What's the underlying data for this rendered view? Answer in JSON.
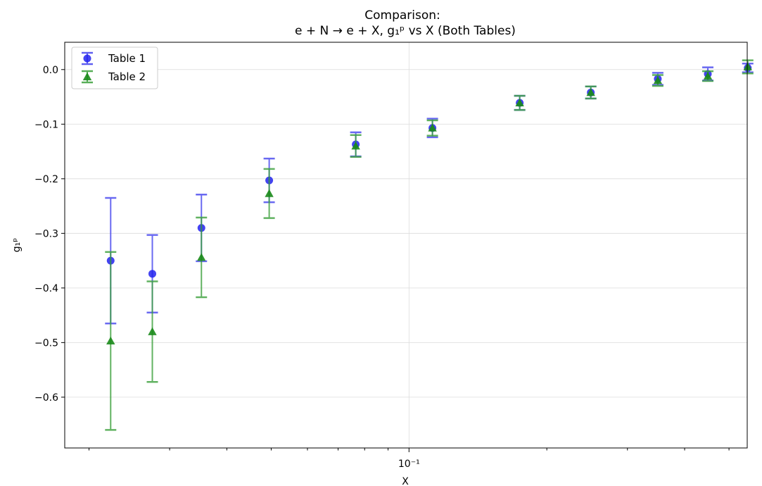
{
  "chart_data": {
    "type": "scatter",
    "title": "Comparison:",
    "subtitle": "e + N → e + X, g₁ᵖ vs X (Both Tables)",
    "xlabel": "X",
    "ylabel": "g₁ᵖ",
    "xscale": "log",
    "xlim": [
      0.0177,
      0.548
    ],
    "ylim": [
      -0.693,
      0.05
    ],
    "grid": true,
    "legend_position": "top-left",
    "x_tick_label": "10⁻¹",
    "y_ticks": [
      0.0,
      -0.1,
      -0.2,
      -0.3,
      -0.4,
      -0.5,
      -0.6
    ],
    "y_tick_labels": [
      "0.0",
      "−0.1",
      "−0.2",
      "−0.3",
      "−0.4",
      "−0.5",
      "−0.6"
    ],
    "series": [
      {
        "name": "Table 1",
        "marker": "circle",
        "color": "#2222ee",
        "errorbar_color": "#4444ee",
        "x": [
          0.0223,
          0.0275,
          0.0352,
          0.0495,
          0.0765,
          0.1125,
          0.1745,
          0.2495,
          0.3495,
          0.4495,
          0.5495
        ],
        "y": [
          -0.35,
          -0.374,
          -0.29,
          -0.203,
          -0.137,
          -0.107,
          -0.061,
          -0.042,
          -0.017,
          -0.008,
          0.003
        ],
        "yerr": [
          0.115,
          0.071,
          0.061,
          0.04,
          0.022,
          0.017,
          0.013,
          0.011,
          0.011,
          0.012,
          0.008
        ]
      },
      {
        "name": "Table 2",
        "marker": "triangle",
        "color": "#1a8a1a",
        "errorbar_color": "#3aa03a",
        "x": [
          0.0223,
          0.0275,
          0.0352,
          0.0495,
          0.0765,
          0.1125,
          0.1745,
          0.2495,
          0.3495,
          0.4495,
          0.5495
        ],
        "y": [
          -0.497,
          -0.48,
          -0.344,
          -0.227,
          -0.14,
          -0.107,
          -0.061,
          -0.042,
          -0.02,
          -0.012,
          0.005
        ],
        "yerr": [
          0.163,
          0.092,
          0.073,
          0.045,
          0.02,
          0.014,
          0.013,
          0.011,
          0.01,
          0.009,
          0.012
        ]
      }
    ]
  }
}
